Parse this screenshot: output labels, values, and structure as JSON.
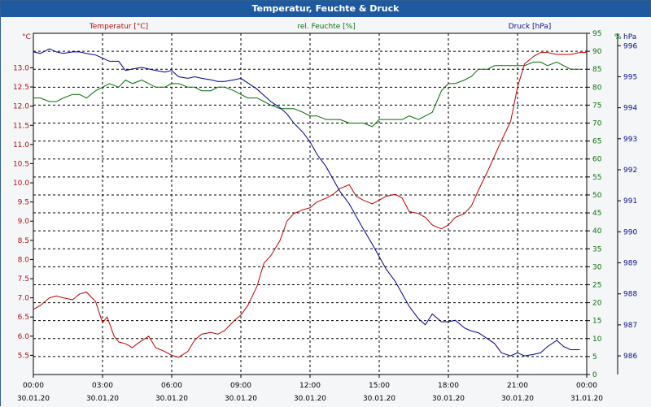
{
  "window": {
    "title": "Temperatur, Feuchte & Druck"
  },
  "chart_data": {
    "type": "line",
    "grid": true,
    "x_ticks": [
      {
        "time": "00:00",
        "date": "30.01.20"
      },
      {
        "time": "03:00",
        "date": "30.01.20"
      },
      {
        "time": "06:00",
        "date": "30.01.20"
      },
      {
        "time": "09:00",
        "date": "30.01.20"
      },
      {
        "time": "12:00",
        "date": "30.01.20"
      },
      {
        "time": "15:00",
        "date": "30.01.20"
      },
      {
        "time": "18:00",
        "date": "30.01.20"
      },
      {
        "time": "21:00",
        "date": "30.01.20"
      },
      {
        "time": "00:00",
        "date": "31.01.20"
      }
    ],
    "axes": {
      "temp": {
        "label": "Temperatur [°C]",
        "unit": "°C",
        "min": 5,
        "max": 13.9,
        "ticks": [
          5.5,
          6.0,
          6.5,
          7.0,
          7.5,
          8.0,
          8.5,
          9.0,
          9.5,
          10.0,
          10.5,
          11.0,
          11.5,
          12.0,
          12.5,
          13.0
        ],
        "color": "#b01010"
      },
      "hum": {
        "label": "rel. Feuchte [%]",
        "unit": "%",
        "min": 0,
        "max": 95,
        "ticks": [
          0,
          5,
          10,
          15,
          20,
          25,
          30,
          35,
          40,
          45,
          50,
          55,
          60,
          65,
          70,
          75,
          80,
          85,
          90,
          95
        ],
        "color": "#107010"
      },
      "press": {
        "label": "Druck [hPa]",
        "unit": "hPa",
        "min": 985.4,
        "max": 996.4,
        "ticks": [
          986,
          987,
          988,
          989,
          990,
          991,
          992,
          993,
          994,
          995,
          996
        ],
        "color": "#101090"
      }
    },
    "series": [
      {
        "name": "Temperatur [°C]",
        "axis": "temp",
        "color": "#c00000",
        "x": [
          0,
          0.3,
          0.7,
          1.0,
          1.3,
          1.7,
          2.0,
          2.3,
          2.7,
          3.0,
          3.2,
          3.5,
          3.7,
          4.0,
          4.3,
          4.5,
          5.0,
          5.3,
          5.7,
          6.0,
          6.3,
          6.7,
          7.0,
          7.3,
          7.7,
          8.0,
          8.3,
          8.7,
          9.0,
          9.3,
          9.7,
          10.0,
          10.3,
          10.7,
          11.0,
          11.3,
          11.7,
          12.0,
          12.3,
          12.7,
          13.0,
          13.3,
          13.7,
          14.0,
          14.3,
          14.7,
          15.0,
          15.3,
          15.7,
          16.0,
          16.3,
          16.7,
          17.0,
          17.3,
          17.7,
          18.0,
          18.3,
          18.7,
          19.0,
          19.3,
          19.7,
          20.0,
          20.3,
          20.7,
          21.0,
          21.3,
          21.7,
          22.0,
          22.3,
          22.7,
          23.0,
          23.3,
          23.7,
          24.0
        ],
        "values": [
          6.7,
          6.8,
          7.0,
          7.05,
          7.0,
          6.95,
          7.1,
          7.15,
          6.9,
          6.35,
          6.5,
          6.0,
          5.85,
          5.8,
          5.7,
          5.8,
          6.0,
          5.7,
          5.6,
          5.5,
          5.45,
          5.6,
          5.9,
          6.05,
          6.1,
          6.05,
          6.15,
          6.4,
          6.55,
          6.8,
          7.3,
          7.9,
          8.1,
          8.5,
          9.0,
          9.2,
          9.3,
          9.35,
          9.5,
          9.6,
          9.7,
          9.85,
          9.95,
          9.65,
          9.55,
          9.45,
          9.55,
          9.65,
          9.7,
          9.6,
          9.25,
          9.2,
          9.1,
          8.9,
          8.8,
          8.9,
          9.1,
          9.2,
          9.4,
          9.8,
          10.3,
          10.7,
          11.1,
          11.6,
          12.5,
          13.1,
          13.3,
          13.4,
          13.4,
          13.35,
          13.35,
          13.35,
          13.4,
          13.4
        ]
      },
      {
        "name": "rel. Feuchte [%]",
        "axis": "hum",
        "color": "#007000",
        "x": [
          0,
          0.3,
          0.7,
          1.0,
          1.3,
          1.7,
          2.0,
          2.3,
          2.7,
          3.0,
          3.3,
          3.7,
          4.0,
          4.3,
          4.7,
          5.0,
          5.3,
          5.7,
          6.0,
          6.3,
          6.7,
          7.0,
          7.3,
          7.7,
          8.0,
          8.3,
          8.7,
          9.0,
          9.3,
          9.7,
          10.0,
          10.3,
          10.7,
          11.0,
          11.3,
          11.7,
          12.0,
          12.3,
          12.7,
          13.0,
          13.3,
          13.7,
          14.0,
          14.3,
          14.7,
          15.0,
          15.3,
          15.7,
          16.0,
          16.3,
          16.7,
          17.0,
          17.3,
          17.7,
          18.0,
          18.3,
          18.7,
          19.0,
          19.3,
          19.7,
          20.0,
          20.3,
          20.7,
          21.0,
          21.3,
          21.7,
          22.0,
          22.3,
          22.7,
          23.0,
          23.3,
          23.7
        ],
        "values": [
          77,
          77,
          76,
          76,
          77,
          78,
          78,
          77,
          79,
          80,
          81,
          80,
          82,
          81,
          82,
          81,
          80,
          80,
          81,
          81,
          80,
          80,
          79,
          79,
          80,
          80,
          79,
          78,
          77,
          77,
          76,
          75,
          74,
          74,
          74,
          73,
          72,
          72,
          71,
          71,
          71,
          70,
          70,
          70,
          69,
          71,
          71,
          71,
          71,
          72,
          71,
          72,
          73,
          79,
          81,
          81,
          82,
          83,
          85,
          85,
          86,
          86,
          86,
          86,
          86,
          87,
          87,
          86,
          87,
          86,
          85,
          85
        ]
      },
      {
        "name": "Druck [hPa]",
        "axis": "press",
        "color": "#000090",
        "x": [
          0,
          0.3,
          0.7,
          1.0,
          1.3,
          1.7,
          2.0,
          2.3,
          2.7,
          3.0,
          3.3,
          3.7,
          4.0,
          4.3,
          4.7,
          5.0,
          5.3,
          5.7,
          6.0,
          6.3,
          6.7,
          7.0,
          7.3,
          7.7,
          8.0,
          8.3,
          8.7,
          9.0,
          9.3,
          9.7,
          10.0,
          10.3,
          10.7,
          11.0,
          11.3,
          11.7,
          12.0,
          12.3,
          12.7,
          13.0,
          13.3,
          13.7,
          14.0,
          14.3,
          14.7,
          15.0,
          15.3,
          15.7,
          16.0,
          16.3,
          16.7,
          17.0,
          17.3,
          17.7,
          18.0,
          18.3,
          18.7,
          19.0,
          19.3,
          19.7,
          20.0,
          20.3,
          20.7,
          21.0,
          21.3,
          21.7,
          22.0,
          22.3,
          22.7,
          23.0,
          23.3,
          23.7
        ],
        "values": [
          995.8,
          995.75,
          995.9,
          995.8,
          995.75,
          995.8,
          995.8,
          995.75,
          995.7,
          995.6,
          995.5,
          995.5,
          995.2,
          995.25,
          995.3,
          995.25,
          995.2,
          995.15,
          995.2,
          995.0,
          994.95,
          995.0,
          994.95,
          994.9,
          994.85,
          994.85,
          994.9,
          994.95,
          994.8,
          994.6,
          994.4,
          994.2,
          994.0,
          993.8,
          993.5,
          993.2,
          992.9,
          992.5,
          992.1,
          991.7,
          991.3,
          990.9,
          990.5,
          990.1,
          989.6,
          989.2,
          988.8,
          988.4,
          988.0,
          987.6,
          987.2,
          987.0,
          987.35,
          987.1,
          987.1,
          987.15,
          986.9,
          986.8,
          986.75,
          986.55,
          986.4,
          986.1,
          986.0,
          986.1,
          986.0,
          986.05,
          986.1,
          986.3,
          986.5,
          986.3,
          986.2,
          986.2
        ]
      }
    ]
  }
}
